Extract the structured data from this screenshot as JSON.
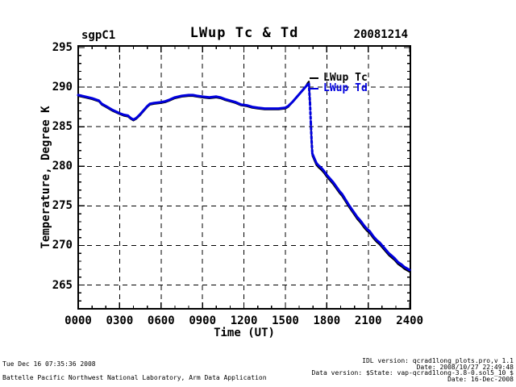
{
  "header": {
    "site": "sgpC1",
    "date": "20081214"
  },
  "chart_data": {
    "type": "line",
    "title": "LWup Tc & Td",
    "xlabel": "Time (UT)",
    "ylabel": "Temperature, Degree K",
    "xlim": [
      0,
      24.05
    ],
    "ylim": [
      262.0,
      295.2
    ],
    "x_ticks": [
      {
        "value": 0,
        "label": "0000"
      },
      {
        "value": 3,
        "label": "0300"
      },
      {
        "value": 6,
        "label": "0600"
      },
      {
        "value": 9,
        "label": "0900"
      },
      {
        "value": 12,
        "label": "1200"
      },
      {
        "value": 15,
        "label": "1500"
      },
      {
        "value": 18,
        "label": "1800"
      },
      {
        "value": 21,
        "label": "2100"
      },
      {
        "value": 24,
        "label": "2400"
      }
    ],
    "y_ticks": [
      265,
      270,
      275,
      280,
      285,
      290,
      295
    ],
    "x_minor_step": 1,
    "y_minor_step": 1,
    "grid_style": "dashed",
    "grid_color": "#000000",
    "background": "#ffffff",
    "legend": {
      "position": "inside-top-right",
      "entries": [
        {
          "label": "LWup Tc",
          "color": "#000000"
        },
        {
          "label": "LWup Td",
          "color": "#0000dd"
        }
      ]
    },
    "series": [
      {
        "name": "LWup Tc",
        "color": "#000000",
        "width": 2,
        "x": [
          0,
          0.5,
          1.0,
          1.5,
          1.7,
          2.0,
          2.5,
          3.0,
          3.3,
          3.6,
          3.8,
          4.0,
          4.2,
          4.5,
          4.8,
          5.0,
          5.2,
          5.5,
          6.0,
          6.3,
          6.6,
          7.0,
          7.5,
          8.0,
          8.3,
          8.6,
          9.0,
          9.5,
          10.0,
          10.3,
          10.6,
          11.0,
          11.4,
          11.8,
          12.2,
          12.6,
          13.0,
          13.5,
          14.0,
          14.5,
          15.0,
          15.2,
          15.5,
          15.8,
          16.1,
          16.4,
          16.6,
          16.7,
          16.78,
          16.84,
          16.9,
          16.95,
          17.1,
          17.25,
          17.4,
          17.6,
          17.8,
          18.0,
          18.2,
          18.45,
          18.7,
          18.9,
          19.1,
          19.35,
          19.6,
          19.8,
          20.0,
          20.2,
          20.45,
          20.7,
          20.9,
          21.1,
          21.35,
          21.6,
          21.8,
          22.0,
          22.25,
          22.5,
          22.7,
          22.9,
          23.15,
          23.4,
          23.6,
          23.8,
          24.0
        ],
        "y": [
          288.88,
          288.68,
          288.48,
          288.18,
          287.78,
          287.48,
          286.98,
          286.58,
          286.38,
          286.28,
          285.98,
          285.78,
          285.98,
          286.48,
          287.08,
          287.48,
          287.78,
          287.88,
          287.98,
          288.08,
          288.28,
          288.58,
          288.78,
          288.88,
          288.88,
          288.78,
          288.68,
          288.58,
          288.68,
          288.58,
          288.38,
          288.18,
          287.98,
          287.68,
          287.58,
          287.38,
          287.28,
          287.18,
          287.18,
          287.18,
          287.28,
          287.48,
          288.05,
          288.65,
          289.25,
          289.85,
          290.5,
          290.7,
          288.0,
          285.3,
          283.0,
          281.35,
          280.75,
          280.15,
          279.85,
          279.55,
          279.15,
          278.65,
          278.25,
          277.75,
          277.15,
          276.65,
          276.25,
          275.55,
          274.85,
          274.35,
          273.85,
          273.35,
          272.85,
          272.25,
          271.85,
          271.55,
          270.95,
          270.45,
          270.15,
          269.75,
          269.25,
          268.75,
          268.45,
          268.15,
          267.65,
          267.35,
          267.05,
          266.85,
          266.65
        ]
      },
      {
        "name": "LWup Td",
        "color": "#0000dd",
        "width": 3,
        "x": [
          0,
          0.5,
          1.0,
          1.5,
          1.7,
          2.0,
          2.5,
          3.0,
          3.3,
          3.6,
          3.8,
          4.0,
          4.2,
          4.5,
          4.8,
          5.0,
          5.2,
          5.5,
          6.0,
          6.3,
          6.6,
          7.0,
          7.5,
          8.0,
          8.3,
          8.6,
          9.0,
          9.5,
          10.0,
          10.3,
          10.6,
          11.0,
          11.4,
          11.8,
          12.2,
          12.6,
          13.0,
          13.5,
          14.0,
          14.5,
          15.0,
          15.2,
          15.5,
          15.8,
          16.1,
          16.4,
          16.6,
          16.7,
          16.78,
          16.84,
          16.9,
          16.95,
          17.1,
          17.25,
          17.4,
          17.6,
          17.8,
          18.0,
          18.2,
          18.45,
          18.7,
          18.9,
          19.1,
          19.35,
          19.6,
          19.8,
          20.0,
          20.2,
          20.45,
          20.7,
          20.9,
          21.1,
          21.35,
          21.6,
          21.8,
          22.0,
          22.25,
          22.5,
          22.7,
          22.9,
          23.15,
          23.4,
          23.6,
          23.8,
          24.0
        ],
        "y": [
          289.0,
          288.8,
          288.6,
          288.3,
          287.9,
          287.6,
          287.1,
          286.7,
          286.5,
          286.4,
          286.1,
          285.9,
          286.1,
          286.6,
          287.2,
          287.6,
          287.9,
          288.0,
          288.1,
          288.2,
          288.4,
          288.7,
          288.9,
          289.0,
          289.0,
          288.9,
          288.8,
          288.7,
          288.8,
          288.7,
          288.5,
          288.3,
          288.1,
          287.8,
          287.7,
          287.5,
          287.4,
          287.3,
          287.3,
          287.3,
          287.4,
          287.6,
          288.1,
          288.7,
          289.3,
          289.9,
          290.3,
          290.4,
          288.0,
          285.5,
          283.2,
          281.6,
          281.0,
          280.4,
          280.1,
          279.8,
          279.4,
          278.9,
          278.5,
          278.0,
          277.4,
          276.9,
          276.5,
          275.8,
          275.1,
          274.6,
          274.1,
          273.6,
          273.1,
          272.5,
          272.1,
          271.8,
          271.2,
          270.7,
          270.4,
          270.0,
          269.5,
          269.0,
          268.7,
          268.4,
          267.9,
          267.6,
          267.3,
          267.1,
          266.9
        ]
      }
    ]
  },
  "footer": {
    "left_line1": "Tue Dec 16 07:35:36 2008",
    "left_line2": "Battelle Pacific Northwest National Laboratory, Arm Data Application",
    "right_line1": "IDL version: qcrad1long_plots.pro,v 1.1",
    "right_line2": "Date: 2008/10/27 22:49:48",
    "right_line3": "Data version: $State: vap-qcrad1long-3.8-0.sol5_10 $",
    "right_line4": "Date: 16-Dec-2008"
  }
}
